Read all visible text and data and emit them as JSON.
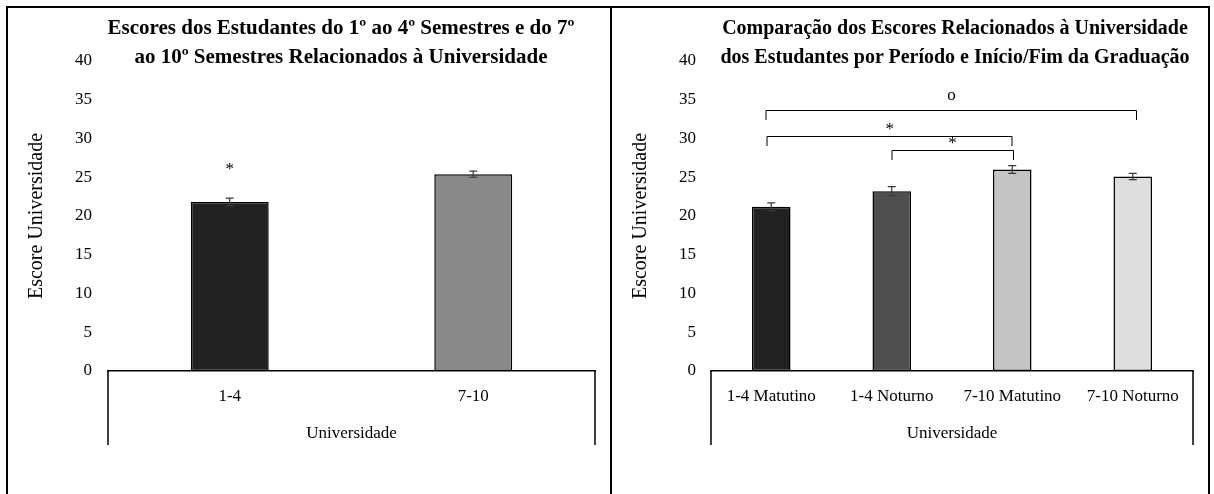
{
  "chart_data": [
    {
      "type": "bar",
      "title": "Escores dos Estudantes do 1º ao 4º Semestres e do 7º ao 10º Semestres Relacionados à Universidade",
      "xlabel": "Universidade",
      "ylabel": "Escore Universidade",
      "categories": [
        "1-4",
        "7-10"
      ],
      "values": [
        21.8,
        25.4
      ],
      "errors": [
        0.5,
        0.4
      ],
      "colors": [
        "#222222",
        "#8a8a8a"
      ],
      "ylim": [
        0,
        40
      ],
      "yticks": [
        0,
        5,
        10,
        15,
        20,
        25,
        30,
        35,
        40
      ],
      "annotations": [
        "*"
      ]
    },
    {
      "type": "bar",
      "title": "Comparação dos Escores Relacionados à Universidade dos Estudantes por Período e Início/Fim da Graduação",
      "xlabel": "Universidade",
      "ylabel": "Escore Universidade",
      "categories": [
        "1-4 Matutino",
        "1-4 Noturno",
        "7-10 Matutino",
        "7-10 Noturno"
      ],
      "values": [
        21.2,
        23.2,
        26.0,
        25.1
      ],
      "errors": [
        0.5,
        0.6,
        0.5,
        0.4
      ],
      "colors": [
        "#222222",
        "#4f4f4f",
        "#c4c4c4",
        "#dedede"
      ],
      "ylim": [
        0,
        40
      ],
      "yticks": [
        0,
        5,
        10,
        15,
        20,
        25,
        30,
        35,
        40
      ],
      "annotations": [
        "o",
        "*",
        "*"
      ]
    }
  ]
}
